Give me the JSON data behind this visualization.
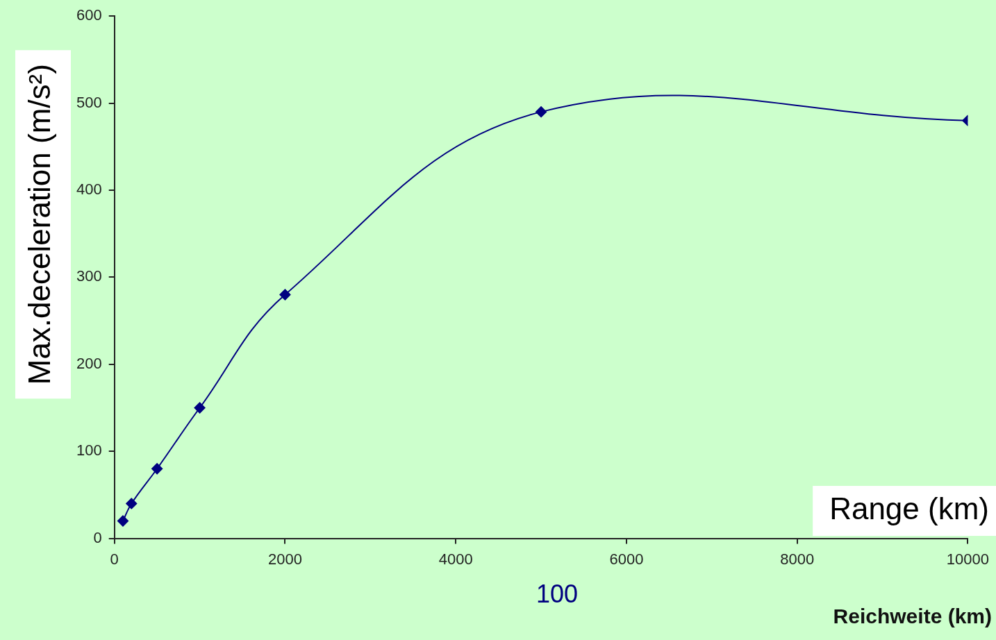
{
  "chart_data": {
    "type": "line",
    "xlabel": "Reichweite (km)",
    "ylabel": "Max.deceleration (m/s²)",
    "annotations": [
      "Range (km)",
      "100"
    ],
    "x": [
      100,
      200,
      500,
      1000,
      2000,
      5000,
      10000
    ],
    "series": [
      {
        "color": "#000080",
        "values": [
          20,
          40,
          80,
          150,
          280,
          490,
          480
        ]
      }
    ],
    "xlim": [
      0,
      10000
    ],
    "xticks": [
      0,
      2000,
      4000,
      6000,
      8000,
      10000
    ],
    "ylim": [
      0,
      600
    ],
    "yticks": [
      0,
      100,
      200,
      300,
      400,
      500,
      600
    ],
    "marker": "diamond",
    "line_style": "solid",
    "grid": false,
    "legend": false
  }
}
